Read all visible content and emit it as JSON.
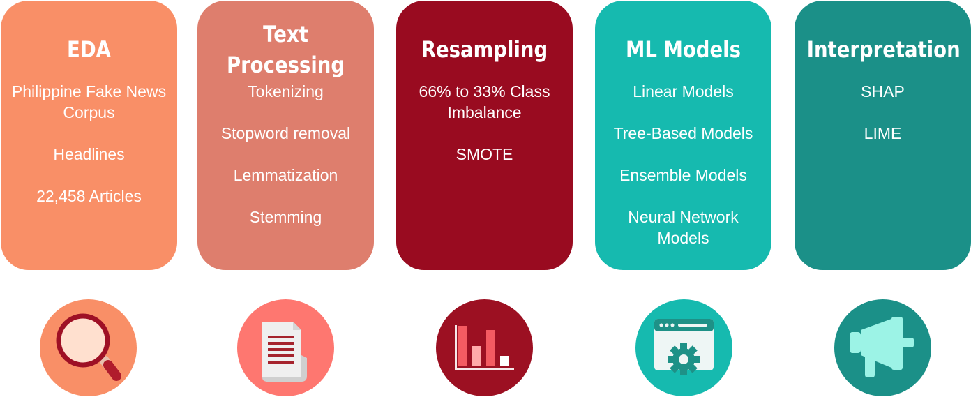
{
  "stages": [
    {
      "title": "EDA",
      "items": [
        "Philippine Fake News Corpus",
        "Headlines",
        "22,458 Articles"
      ],
      "color": "#F98F67",
      "icon": "magnifier-icon",
      "icon_bg": "#F98F67"
    },
    {
      "title_lines": [
        "Text",
        "Processing"
      ],
      "items": [
        "Tokenizing",
        "Stopword removal",
        "Lemmatization",
        "Stemming"
      ],
      "color": "#DE7E6D",
      "icon": "document-icon",
      "icon_bg": "#FE7770"
    },
    {
      "title": "Resampling",
      "items": [
        "66% to 33% Class Imbalance",
        "SMOTE"
      ],
      "color": "#990B20",
      "icon": "bar-chart-icon",
      "icon_bg": "#9C1022"
    },
    {
      "title": "ML Models",
      "items": [
        "Linear Models",
        "Tree-Based Models",
        "Ensemble Models",
        "Neural Network Models"
      ],
      "color": "#16BAAF",
      "icon": "browser-gear-icon",
      "icon_bg": "#16BAAF"
    },
    {
      "title": "Interpretation",
      "items": [
        "SHAP",
        "LIME"
      ],
      "color": "#1B9088",
      "icon": "megaphone-icon",
      "icon_bg": "#1B9088"
    }
  ]
}
